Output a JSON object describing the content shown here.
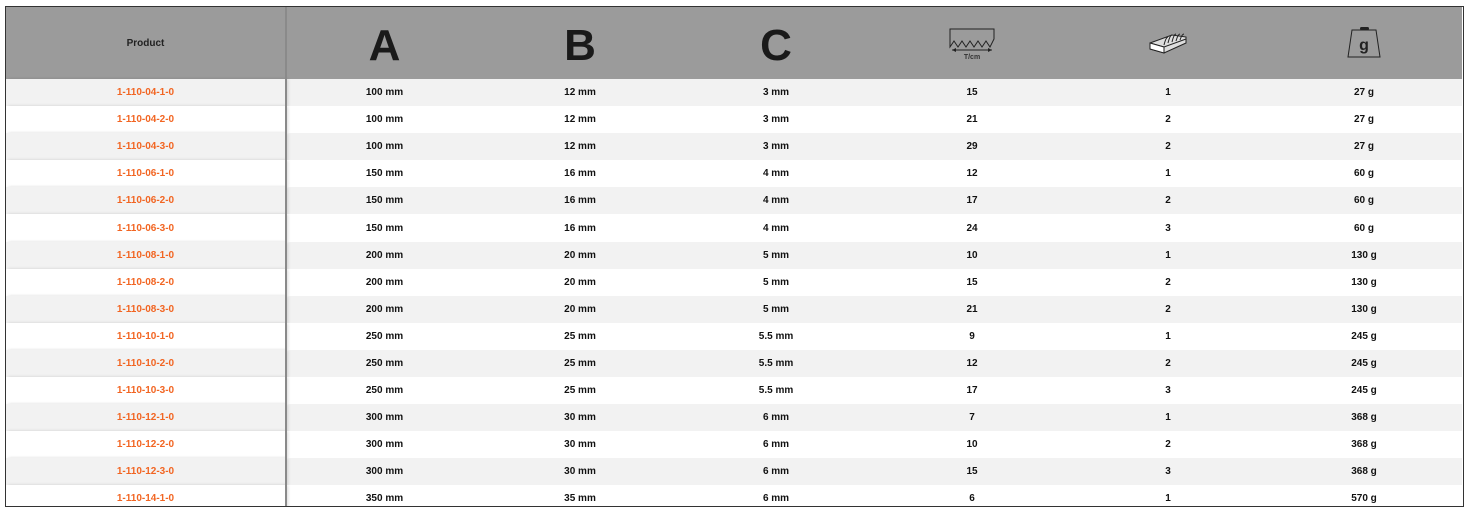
{
  "colors": {
    "header_bg": "#9b9b9b",
    "product_link": "#f26522",
    "row_alt": "#f2f2f2"
  },
  "header": {
    "product": "Product",
    "a": "A",
    "b": "B",
    "c": "C",
    "teeth_icon": "teeth-per-cm-icon",
    "teeth_unit": "T/cm",
    "cut_icon": "file-cut-icon",
    "weight_icon": "weight-icon",
    "weight_letter": "g"
  },
  "rows": [
    {
      "product": "1-110-04-1-0",
      "a": "100 mm",
      "b": "12 mm",
      "c": "3 mm",
      "tpc": "15",
      "cut": "1",
      "weight": "27 g"
    },
    {
      "product": "1-110-04-2-0",
      "a": "100 mm",
      "b": "12 mm",
      "c": "3 mm",
      "tpc": "21",
      "cut": "2",
      "weight": "27 g"
    },
    {
      "product": "1-110-04-3-0",
      "a": "100 mm",
      "b": "12 mm",
      "c": "3 mm",
      "tpc": "29",
      "cut": "2",
      "weight": "27 g"
    },
    {
      "product": "1-110-06-1-0",
      "a": "150 mm",
      "b": "16 mm",
      "c": "4 mm",
      "tpc": "12",
      "cut": "1",
      "weight": "60 g"
    },
    {
      "product": "1-110-06-2-0",
      "a": "150 mm",
      "b": "16 mm",
      "c": "4 mm",
      "tpc": "17",
      "cut": "2",
      "weight": "60 g"
    },
    {
      "product": "1-110-06-3-0",
      "a": "150 mm",
      "b": "16 mm",
      "c": "4 mm",
      "tpc": "24",
      "cut": "3",
      "weight": "60 g"
    },
    {
      "product": "1-110-08-1-0",
      "a": "200 mm",
      "b": "20 mm",
      "c": "5 mm",
      "tpc": "10",
      "cut": "1",
      "weight": "130 g"
    },
    {
      "product": "1-110-08-2-0",
      "a": "200 mm",
      "b": "20 mm",
      "c": "5 mm",
      "tpc": "15",
      "cut": "2",
      "weight": "130 g"
    },
    {
      "product": "1-110-08-3-0",
      "a": "200 mm",
      "b": "20 mm",
      "c": "5 mm",
      "tpc": "21",
      "cut": "2",
      "weight": "130 g"
    },
    {
      "product": "1-110-10-1-0",
      "a": "250 mm",
      "b": "25 mm",
      "c": "5.5 mm",
      "tpc": "9",
      "cut": "1",
      "weight": "245 g"
    },
    {
      "product": "1-110-10-2-0",
      "a": "250 mm",
      "b": "25 mm",
      "c": "5.5 mm",
      "tpc": "12",
      "cut": "2",
      "weight": "245 g"
    },
    {
      "product": "1-110-10-3-0",
      "a": "250 mm",
      "b": "25 mm",
      "c": "5.5 mm",
      "tpc": "17",
      "cut": "3",
      "weight": "245 g"
    },
    {
      "product": "1-110-12-1-0",
      "a": "300 mm",
      "b": "30 mm",
      "c": "6 mm",
      "tpc": "7",
      "cut": "1",
      "weight": "368 g"
    },
    {
      "product": "1-110-12-2-0",
      "a": "300 mm",
      "b": "30 mm",
      "c": "6 mm",
      "tpc": "10",
      "cut": "2",
      "weight": "368 g"
    },
    {
      "product": "1-110-12-3-0",
      "a": "300 mm",
      "b": "30 mm",
      "c": "6 mm",
      "tpc": "15",
      "cut": "3",
      "weight": "368 g"
    },
    {
      "product": "1-110-14-1-0",
      "a": "350 mm",
      "b": "35 mm",
      "c": "6 mm",
      "tpc": "6",
      "cut": "1",
      "weight": "570 g"
    }
  ]
}
